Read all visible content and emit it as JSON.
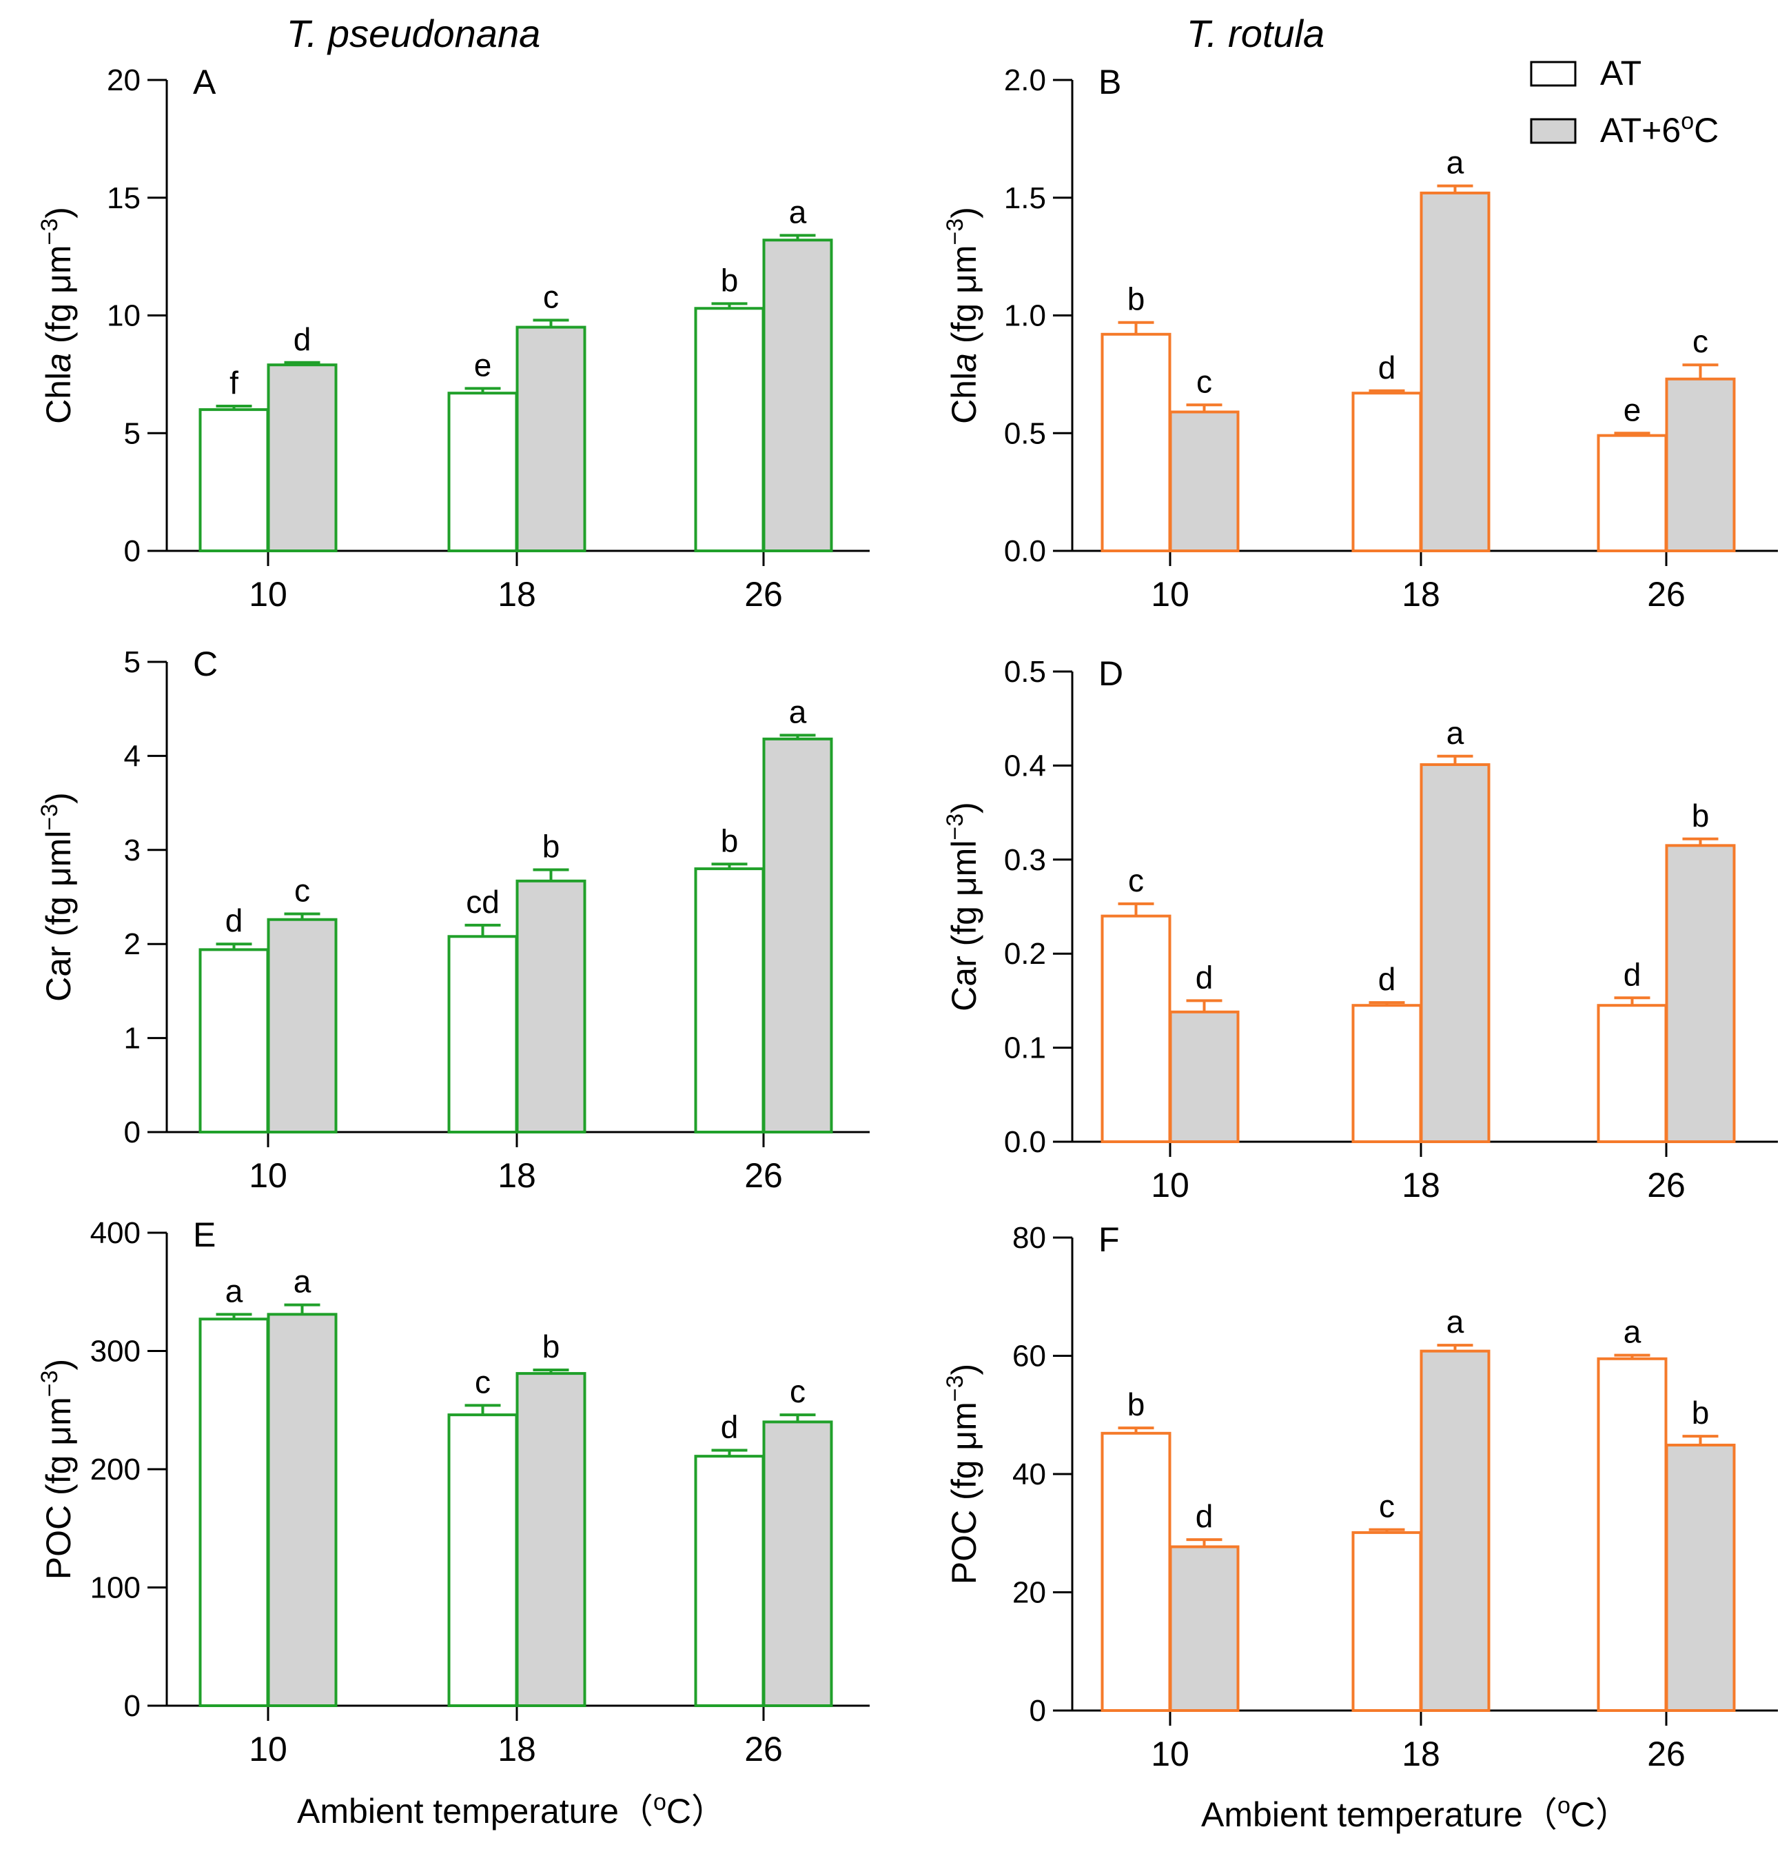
{
  "columns": [
    {
      "title": "T. pseudonana",
      "color": "#20a02a"
    },
    {
      "title": "T. rotula",
      "color": "#f57a2a"
    }
  ],
  "legend": [
    {
      "label": "AT",
      "fill": "#ffffff"
    },
    {
      "label": "AT+6",
      "super": "o",
      "suffix": "C",
      "fill": "#d3d3d3"
    }
  ],
  "x_axis_label": {
    "pre": "Ambient temperature（",
    "super": "o",
    "post": "C）"
  },
  "chart_data": [
    {
      "panel": "A",
      "type": "bar",
      "species": "T. pseudonana",
      "ylabel": {
        "pre": "Chl",
        "italic": "a",
        "mid": " (fg μm",
        "super": "−3",
        "post": ")"
      },
      "categories": [
        "10",
        "18",
        "26"
      ],
      "ylim": [
        0,
        20
      ],
      "yticks": [
        "0",
        "5",
        "10",
        "15",
        "20"
      ],
      "series": [
        {
          "name": "AT",
          "values": [
            6.0,
            6.7,
            10.3
          ],
          "errors": [
            0.15,
            0.2,
            0.2
          ],
          "labels": [
            "f",
            "e",
            "b"
          ]
        },
        {
          "name": "AT+6oC",
          "values": [
            7.9,
            9.5,
            13.2
          ],
          "errors": [
            0.1,
            0.3,
            0.2
          ],
          "labels": [
            "d",
            "c",
            "a"
          ]
        }
      ]
    },
    {
      "panel": "B",
      "type": "bar",
      "species": "T. rotula",
      "ylabel": {
        "pre": "Chl",
        "italic": "a",
        "mid": " (fg μm",
        "super": "−3",
        "post": ")"
      },
      "categories": [
        "10",
        "18",
        "26"
      ],
      "ylim": [
        0,
        2.0
      ],
      "yticks": [
        "0.0",
        "0.5",
        "1.0",
        "1.5",
        "2.0"
      ],
      "series": [
        {
          "name": "AT",
          "values": [
            0.92,
            0.67,
            0.49
          ],
          "errors": [
            0.05,
            0.01,
            0.01
          ],
          "labels": [
            "b",
            "d",
            "e"
          ]
        },
        {
          "name": "AT+6oC",
          "values": [
            0.59,
            1.52,
            0.73
          ],
          "errors": [
            0.03,
            0.03,
            0.06
          ],
          "labels": [
            "c",
            "a",
            "c"
          ]
        }
      ]
    },
    {
      "panel": "C",
      "type": "bar",
      "species": "T. pseudonana",
      "ylabel": {
        "pre": "Car (fg μml",
        "italic": "",
        "mid": "",
        "super": "−3",
        "post": ")"
      },
      "categories": [
        "10",
        "18",
        "26"
      ],
      "ylim": [
        0,
        5
      ],
      "yticks": [
        "0",
        "1",
        "2",
        "3",
        "4",
        "5"
      ],
      "series": [
        {
          "name": "AT",
          "values": [
            1.94,
            2.08,
            2.8
          ],
          "errors": [
            0.06,
            0.12,
            0.05
          ],
          "labels": [
            "d",
            "cd",
            "b"
          ]
        },
        {
          "name": "AT+6oC",
          "values": [
            2.26,
            2.67,
            4.18
          ],
          "errors": [
            0.06,
            0.12,
            0.04
          ],
          "labels": [
            "c",
            "b",
            "a"
          ]
        }
      ]
    },
    {
      "panel": "D",
      "type": "bar",
      "species": "T. rotula",
      "ylabel": {
        "pre": "Car (fg μml",
        "italic": "",
        "mid": "",
        "super": "−3",
        "post": ")"
      },
      "categories": [
        "10",
        "18",
        "26"
      ],
      "ylim": [
        0,
        0.5
      ],
      "yticks": [
        "0.0",
        "0.1",
        "0.2",
        "0.3",
        "0.4",
        "0.5"
      ],
      "series": [
        {
          "name": "AT",
          "values": [
            0.24,
            0.145,
            0.145
          ],
          "errors": [
            0.013,
            0.003,
            0.008
          ],
          "labels": [
            "c",
            "d",
            "d"
          ]
        },
        {
          "name": "AT+6oC",
          "values": [
            0.138,
            0.401,
            0.315
          ],
          "errors": [
            0.012,
            0.009,
            0.007
          ],
          "labels": [
            "d",
            "a",
            "b"
          ]
        }
      ]
    },
    {
      "panel": "E",
      "type": "bar",
      "species": "T. pseudonana",
      "ylabel": {
        "pre": "POC (fg μm",
        "italic": "",
        "mid": "",
        "super": "−3",
        "post": ")"
      },
      "categories": [
        "10",
        "18",
        "26"
      ],
      "ylim": [
        0,
        400
      ],
      "yticks": [
        "0",
        "100",
        "200",
        "300",
        "400"
      ],
      "series": [
        {
          "name": "AT",
          "values": [
            327,
            246,
            211
          ],
          "errors": [
            4,
            8,
            5
          ],
          "labels": [
            "a",
            "c",
            "d"
          ]
        },
        {
          "name": "AT+6oC",
          "values": [
            331,
            281,
            240
          ],
          "errors": [
            8,
            3,
            6
          ],
          "labels": [
            "a",
            "b",
            "c"
          ]
        }
      ]
    },
    {
      "panel": "F",
      "type": "bar",
      "species": "T. rotula",
      "ylabel": {
        "pre": "POC (fg μm",
        "italic": "",
        "mid": "",
        "super": "−3",
        "post": ")"
      },
      "categories": [
        "10",
        "18",
        "26"
      ],
      "ylim": [
        0,
        80
      ],
      "yticks": [
        "0",
        "20",
        "40",
        "60",
        "80"
      ],
      "series": [
        {
          "name": "AT",
          "values": [
            46.9,
            30.1,
            59.5
          ],
          "errors": [
            0.9,
            0.5,
            0.6
          ],
          "labels": [
            "b",
            "c",
            "a"
          ]
        },
        {
          "name": "AT+6oC",
          "values": [
            27.7,
            60.8,
            44.9
          ],
          "errors": [
            1.2,
            1.0,
            1.5
          ],
          "labels": [
            "d",
            "a",
            "b"
          ]
        }
      ]
    }
  ]
}
